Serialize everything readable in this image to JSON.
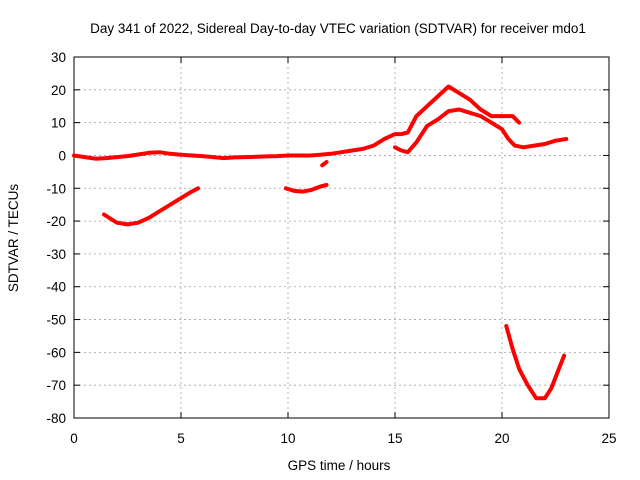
{
  "chart_data": {
    "type": "scatter",
    "title": "Day 341 of 2022, Sidereal Day-to-day VTEC variation (SDTVAR) for receiver mdo1",
    "xlabel": "GPS time / hours",
    "ylabel": "SDTVAR / TECUs",
    "xlim": [
      0,
      25
    ],
    "ylim": [
      -80,
      30
    ],
    "xticks": [
      0,
      5,
      10,
      15,
      20,
      25
    ],
    "yticks": [
      30,
      20,
      10,
      0,
      -10,
      -20,
      -30,
      -40,
      -50,
      -60,
      -70,
      -80
    ],
    "grid": true,
    "legend": "none",
    "marker_color": "#ff0000",
    "series": [
      {
        "name": "track-main-baseline",
        "x": [
          0,
          0.5,
          1,
          1.5,
          2,
          2.5,
          3,
          3.5,
          4,
          4.5,
          5,
          5.5,
          6,
          6.5,
          7,
          7.5,
          8,
          8.5,
          9,
          9.5,
          10,
          10.5,
          11,
          11.5,
          12,
          12.5,
          13,
          13.5,
          14,
          14.5,
          15,
          15.3,
          15.6,
          16,
          16.5,
          17,
          17.5,
          18,
          18.5,
          19,
          19.5,
          20,
          20.5,
          20.8
        ],
        "y": [
          0,
          -0.5,
          -1,
          -0.8,
          -0.5,
          -0.2,
          0.3,
          0.8,
          1,
          0.5,
          0.2,
          0,
          -0.2,
          -0.5,
          -0.8,
          -0.6,
          -0.5,
          -0.4,
          -0.3,
          -0.2,
          0,
          0,
          0,
          0.2,
          0.5,
          1,
          1.5,
          2,
          3,
          5,
          6.5,
          6.5,
          7,
          12,
          15,
          18,
          21,
          19,
          17,
          14,
          12,
          12,
          12,
          10
        ]
      },
      {
        "name": "track-day-early",
        "x": [
          1.4,
          2,
          2.5,
          3,
          3.5,
          4,
          4.5,
          5,
          5.5,
          5.8
        ],
        "y": [
          -18,
          -20.5,
          -21,
          -20.5,
          -19,
          -17,
          -15,
          -13,
          -11,
          -10
        ]
      },
      {
        "name": "track-midday",
        "x": [
          9.9,
          10.3,
          10.7,
          11.1,
          11.5,
          11.8
        ],
        "y": [
          -10,
          -10.8,
          -11,
          -10.5,
          -9.5,
          -9
        ]
      },
      {
        "name": "track-noon-dip",
        "x": [
          11.6,
          11.7,
          11.8
        ],
        "y": [
          -3,
          -2.5,
          -2
        ]
      },
      {
        "name": "track-afternoon",
        "x": [
          15,
          15.3,
          15.6,
          16,
          16.5,
          17,
          17.5,
          18,
          18.5,
          19,
          19.5,
          20,
          20.3,
          20.6,
          21,
          21.5,
          22,
          22.5,
          23
        ],
        "y": [
          2.5,
          1.5,
          1,
          4,
          9,
          11,
          13.5,
          14,
          13,
          12,
          10,
          8,
          5,
          3,
          2.5,
          3,
          3.5,
          4.5,
          5
        ]
      },
      {
        "name": "track-evening-dip",
        "x": [
          20.2,
          20.5,
          20.8,
          21.2,
          21.6,
          22,
          22.3,
          22.6,
          22.9
        ],
        "y": [
          -52,
          -59,
          -65,
          -70,
          -74,
          -74,
          -71,
          -66,
          -61
        ]
      }
    ]
  }
}
